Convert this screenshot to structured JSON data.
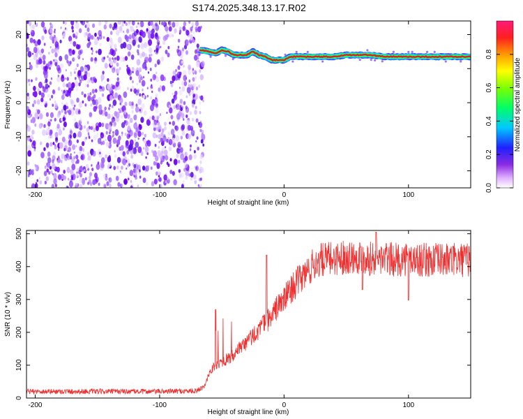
{
  "title": "S174.2025.348.13.17.R02",
  "chart_data": [
    {
      "type": "heatmap",
      "title": "S174.2025.348.13.17.R02",
      "xlabel": "Height of straight line (km)",
      "ylabel": "Frequency (Hz)",
      "xlim": [
        -207,
        150
      ],
      "ylim": [
        -25,
        24
      ],
      "xticks": [
        -200,
        -100,
        0,
        100
      ],
      "yticks": [
        -20,
        -10,
        0,
        10,
        20
      ],
      "noise_region_x": [
        -207,
        -68
      ],
      "colorbar": {
        "label": "Normalized spectral amplitude",
        "range": [
          0.0,
          1.0
        ],
        "ticks": [
          0.0,
          0.2,
          0.4,
          0.6,
          0.8
        ]
      },
      "frequency_track": {
        "x": [
          -68,
          -60,
          -55,
          -50,
          -45,
          -40,
          -35,
          -30,
          -25,
          -20,
          -15,
          -10,
          -5,
          0,
          5,
          10,
          20,
          30,
          40,
          50,
          60,
          70,
          80,
          90,
          100,
          110,
          120,
          130,
          140,
          150
        ],
        "y": [
          15.5,
          15.0,
          14.5,
          15.5,
          15.0,
          14.0,
          14.0,
          14.0,
          15.0,
          14.0,
          13.5,
          12.5,
          12.5,
          12.5,
          13.5,
          13.5,
          13.5,
          13.5,
          13.5,
          14.0,
          14.0,
          14.0,
          13.5,
          13.5,
          13.5,
          13.5,
          13.5,
          13.5,
          13.5,
          13.5
        ]
      }
    },
    {
      "type": "line",
      "xlabel": "Height of straight line (km)",
      "ylabel": "SNR (10 * v/v)",
      "xlim": [
        -207,
        150
      ],
      "ylim": [
        0,
        510
      ],
      "xticks": [
        -200,
        -100,
        0,
        100
      ],
      "yticks": [
        0,
        100,
        200,
        300,
        400,
        500
      ],
      "series": [
        {
          "name": "SNR",
          "color": "#ee3030",
          "x": [
            -207,
            -150,
            -100,
            -70,
            -63,
            -60,
            -55,
            -50,
            -45,
            -40,
            -35,
            -30,
            -25,
            -20,
            -15,
            -10,
            -5,
            0,
            5,
            10,
            15,
            20,
            25,
            30,
            40,
            50,
            60,
            70,
            80,
            90,
            100,
            110,
            120,
            130,
            140,
            150
          ],
          "y": [
            20,
            20,
            20,
            22,
            40,
            80,
            100,
            110,
            120,
            130,
            150,
            170,
            190,
            210,
            230,
            250,
            280,
            300,
            330,
            350,
            370,
            390,
            410,
            420,
            425,
            430,
            430,
            425,
            425,
            420,
            425,
            420,
            420,
            420,
            420,
            420
          ]
        }
      ],
      "spikes": [
        {
          "x": -55,
          "y": 270
        },
        {
          "x": -14,
          "y": 435
        },
        {
          "x": 74,
          "y": 505
        }
      ],
      "dips": [
        {
          "x": 63,
          "y": 330
        },
        {
          "x": 100,
          "y": 298
        }
      ]
    }
  ]
}
